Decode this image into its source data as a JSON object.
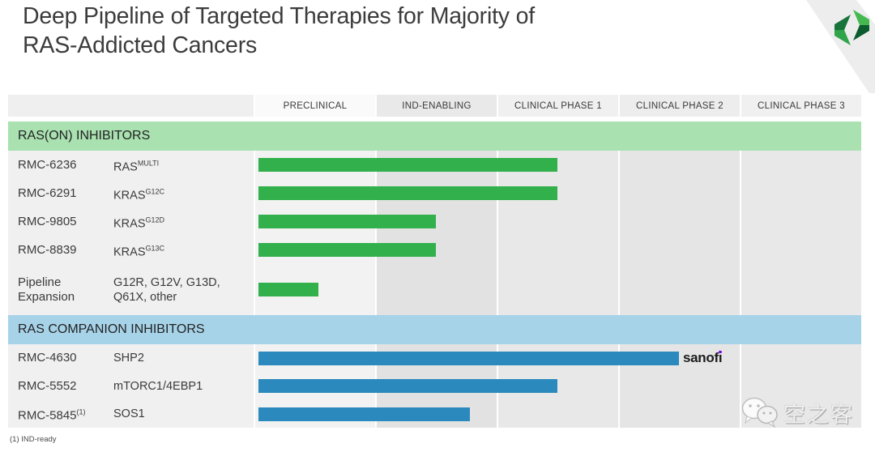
{
  "title": "Deep Pipeline of Targeted Therapies for Majority of\nRAS-Addicted Cancers",
  "columns": [
    "PRECLINICAL",
    "IND-ENABLING",
    "CLINICAL PHASE 1",
    "CLINICAL PHASE 2",
    "CLINICAL PHASE 3"
  ],
  "colors": {
    "green_band": "#a9e1b1",
    "green_bar": "#32b04b",
    "blue_band": "#a7d3e9",
    "blue_bar": "#2c89bd",
    "sanofi_dot": "#7a00e6",
    "logo_dark_green": "#17733b",
    "logo_mid_green": "#2fa44a",
    "logo_light_green": "#45b94f",
    "logo_deep_green": "#0d5c2f"
  },
  "sections": [
    {
      "label": "RAS(ON) INHIBITORS",
      "band_color": "#a9e1b1",
      "bar_color": "#32b04b",
      "rows": [
        {
          "name": "RMC-6236",
          "name_sup": "",
          "target": "RAS",
          "target_sup": "MULTI",
          "progress": 2.5,
          "partner": ""
        },
        {
          "name": "RMC-6291",
          "name_sup": "",
          "target": "KRAS",
          "target_sup": "G12C",
          "progress": 2.5,
          "partner": ""
        },
        {
          "name": "RMC-9805",
          "name_sup": "",
          "target": "KRAS",
          "target_sup": "G12D",
          "progress": 1.5,
          "partner": ""
        },
        {
          "name": "RMC-8839",
          "name_sup": "",
          "target": "KRAS",
          "target_sup": "G13C",
          "progress": 1.5,
          "partner": ""
        },
        {
          "name": "Pipeline Expansion",
          "name_sup": "",
          "target": "G12R, G12V, G13D, Q61X, other",
          "target_sup": "",
          "progress": 0.53,
          "partner": "",
          "tall": true
        }
      ]
    },
    {
      "label": "RAS COMPANION INHIBITORS",
      "band_color": "#a7d3e9",
      "bar_color": "#2c89bd",
      "rows": [
        {
          "name": "RMC-4630",
          "name_sup": "",
          "target": "SHP2",
          "target_sup": "",
          "progress": 3.5,
          "partner": "sanofi"
        },
        {
          "name": "RMC-5552",
          "name_sup": "",
          "target": "mTORC1/4EBP1",
          "target_sup": "",
          "progress": 2.5,
          "partner": ""
        },
        {
          "name": "RMC-5845",
          "name_sup": "(1)",
          "target": "SOS1",
          "target_sup": "",
          "progress": 1.78,
          "partner": ""
        }
      ]
    }
  ],
  "footnote": "(1) IND-ready",
  "watermark": {
    "text": "空之客",
    "icon": "wechat-icon"
  },
  "chart_data": {
    "type": "bar",
    "orientation": "horizontal",
    "title": "Deep Pipeline of Targeted Therapies for Majority of RAS-Addicted Cancers",
    "x_axis_phases": [
      "PRECLINICAL",
      "IND-ENABLING",
      "CLINICAL PHASE 1",
      "CLINICAL PHASE 2",
      "CLINICAL PHASE 3"
    ],
    "x_unit": "development stage, 1 unit = 1 phase column",
    "xlim": [
      0,
      5
    ],
    "series": [
      {
        "group": "RAS(ON) INHIBITORS",
        "program": "RMC-6236",
        "target": "RAS(MULTI)",
        "extent_phase_units": 2.5,
        "phase_reached": "Clinical Phase 1 (mid)"
      },
      {
        "group": "RAS(ON) INHIBITORS",
        "program": "RMC-6291",
        "target": "KRAS(G12C)",
        "extent_phase_units": 2.5,
        "phase_reached": "Clinical Phase 1 (mid)"
      },
      {
        "group": "RAS(ON) INHIBITORS",
        "program": "RMC-9805",
        "target": "KRAS(G12D)",
        "extent_phase_units": 1.5,
        "phase_reached": "IND-Enabling (mid)"
      },
      {
        "group": "RAS(ON) INHIBITORS",
        "program": "RMC-8839",
        "target": "KRAS(G13C)",
        "extent_phase_units": 1.5,
        "phase_reached": "IND-Enabling (mid)"
      },
      {
        "group": "RAS(ON) INHIBITORS",
        "program": "Pipeline Expansion",
        "target": "G12R, G12V, G13D, Q61X, other",
        "extent_phase_units": 0.5,
        "phase_reached": "Preclinical (mid)"
      },
      {
        "group": "RAS COMPANION INHIBITORS",
        "program": "RMC-4630",
        "target": "SHP2",
        "extent_phase_units": 3.5,
        "phase_reached": "Clinical Phase 2 (mid)",
        "partner": "sanofi"
      },
      {
        "group": "RAS COMPANION INHIBITORS",
        "program": "RMC-5552",
        "target": "mTORC1/4EBP1",
        "extent_phase_units": 2.5,
        "phase_reached": "Clinical Phase 1 (mid)"
      },
      {
        "group": "RAS COMPANION INHIBITORS",
        "program": "RMC-5845",
        "target": "SOS1",
        "extent_phase_units": 1.8,
        "phase_reached": "IND-Enabling (late)"
      }
    ]
  }
}
